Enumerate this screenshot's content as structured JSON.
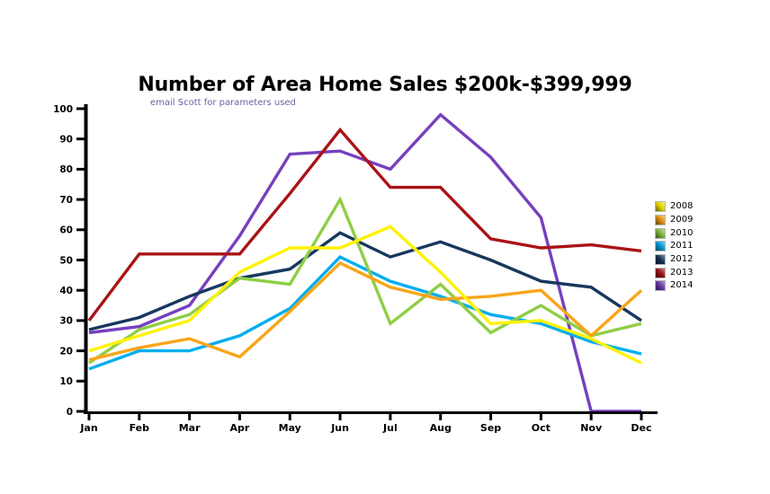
{
  "chart_data": {
    "type": "line",
    "title": "Number of Area Home Sales $200k-$399,999",
    "subtitle": "email Scott for parameters used",
    "categories": [
      "Jan",
      "Feb",
      "Mar",
      "Apr",
      "May",
      "Jun",
      "Jul",
      "Aug",
      "Sep",
      "Oct",
      "Nov",
      "Dec"
    ],
    "ylim": [
      0,
      100
    ],
    "yticks": [
      0,
      10,
      20,
      30,
      40,
      50,
      60,
      70,
      80,
      90,
      100
    ],
    "grid": false,
    "legend_position": "right",
    "background": "#ffffff",
    "axis_color": "#000000",
    "subtitle_color": "#6565A5",
    "series": [
      {
        "name": "2008",
        "color": "#FFF200",
        "values": [
          20,
          25,
          30,
          46,
          54,
          54,
          61,
          46,
          29,
          30,
          24,
          16
        ]
      },
      {
        "name": "2009",
        "color": "#F9A51A",
        "values": [
          17,
          21,
          24,
          18,
          33,
          49,
          41,
          37,
          38,
          40,
          25,
          40
        ]
      },
      {
        "name": "2010",
        "color": "#8FCE46",
        "values": [
          16,
          27,
          32,
          44,
          42,
          70,
          29,
          42,
          26,
          35,
          25,
          29
        ]
      },
      {
        "name": "2011",
        "color": "#00AEEF",
        "values": [
          14,
          20,
          20,
          25,
          34,
          51,
          43,
          38,
          32,
          29,
          23,
          19
        ]
      },
      {
        "name": "2012",
        "color": "#17375E",
        "values": [
          27,
          31,
          38,
          44,
          47,
          59,
          51,
          56,
          50,
          43,
          41,
          30
        ]
      },
      {
        "name": "2013",
        "color": "#AA1316",
        "values": [
          30,
          52,
          52,
          52,
          72,
          93,
          74,
          74,
          57,
          54,
          55,
          53
        ]
      },
      {
        "name": "2014",
        "color": "#7640BE",
        "values": [
          26,
          28,
          35,
          58,
          85,
          86,
          80,
          98,
          84,
          64,
          0,
          0
        ]
      }
    ]
  }
}
